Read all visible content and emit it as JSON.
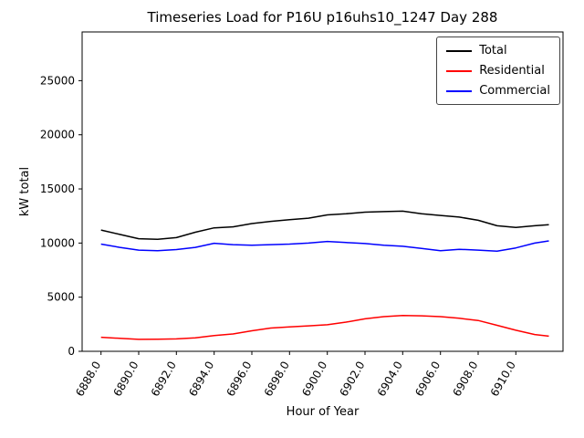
{
  "title": "Timeseries Load for P16U p16uhs10_1247  Day 288",
  "chart_data": {
    "type": "line",
    "title": "Timeseries Load for P16U p16uhs10_1247  Day 288",
    "xlabel": "Hour of Year",
    "ylabel": "kW total",
    "xlim": [
      6887.0,
      6912.5
    ],
    "ylim": [
      0,
      29500
    ],
    "grid": false,
    "legend_position": "upper right",
    "yticks": [
      0,
      5000,
      10000,
      15000,
      20000,
      25000
    ],
    "xticks": [
      6888,
      6890,
      6892,
      6894,
      6896,
      6898,
      6900,
      6902,
      6904,
      6906,
      6908,
      6910
    ],
    "xtick_labels": [
      "6888.0",
      "6890.0",
      "6892.0",
      "6894.0",
      "6896.0",
      "6898.0",
      "6900.0",
      "6902.0",
      "6904.0",
      "6906.0",
      "6908.0",
      "6910.0"
    ],
    "x": [
      6888,
      6889,
      6890,
      6891,
      6892,
      6893,
      6894,
      6895,
      6896,
      6897,
      6898,
      6899,
      6900,
      6901,
      6902,
      6903,
      6904,
      6905,
      6906,
      6907,
      6908,
      6909,
      6910,
      6911,
      6911.75
    ],
    "series": [
      {
        "name": "Total",
        "color": "#000000",
        "values": [
          11200,
          10800,
          10400,
          10350,
          10500,
          11000,
          11400,
          11500,
          11800,
          12000,
          12150,
          12300,
          12600,
          12700,
          12850,
          12900,
          12950,
          12700,
          12550,
          12400,
          12100,
          11600,
          11450,
          11600,
          11700
        ]
      },
      {
        "name": "Residential",
        "color": "#ff0000",
        "values": [
          1300,
          1200,
          1100,
          1120,
          1150,
          1250,
          1450,
          1600,
          1900,
          2150,
          2250,
          2350,
          2450,
          2700,
          3000,
          3200,
          3300,
          3280,
          3200,
          3050,
          2850,
          2400,
          1950,
          1550,
          1400
        ]
      },
      {
        "name": "Commercial",
        "color": "#0000ff",
        "values": [
          9900,
          9600,
          9350,
          9300,
          9400,
          9600,
          9980,
          9850,
          9800,
          9850,
          9900,
          10000,
          10150,
          10050,
          9950,
          9800,
          9700,
          9500,
          9300,
          9420,
          9350,
          9250,
          9550,
          10000,
          10200
        ]
      }
    ]
  }
}
